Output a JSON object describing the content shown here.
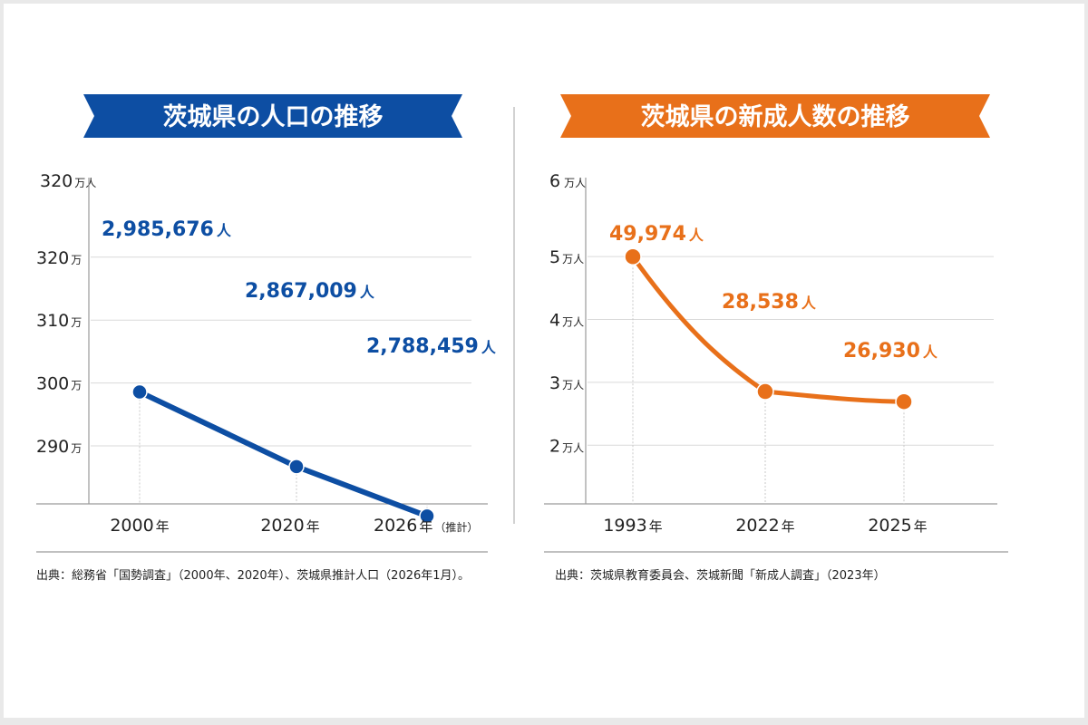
{
  "chart_data": [
    {
      "type": "line",
      "title": "茨城県の人口の推移",
      "color": "#0d4ea3",
      "y_top_label": "320",
      "y_top_unit": "万人",
      "y_unit": "万",
      "yticks": [
        290,
        300,
        310,
        320
      ],
      "ylim": [
        280,
        330
      ],
      "categories": [
        "2000",
        "2020",
        "2026"
      ],
      "x_unit": "年",
      "x_note": "（推計）",
      "values": [
        298.5676,
        286.7009,
        278.8459
      ],
      "value_labels": [
        "2,985,676",
        "2,867,009",
        "2,788,459"
      ],
      "value_unit": "人",
      "source": "出典：総務省「国勢調査」（2000年、2020年）、茨城県推計人口（2026年1月）。"
    },
    {
      "type": "line",
      "title": "茨城県の新成人数の推移",
      "color": "#e8701a",
      "y_top_label": "6",
      "y_top_unit": "万人",
      "y_unit": "万人",
      "yticks": [
        2,
        3,
        4,
        5
      ],
      "ylim": [
        1,
        6
      ],
      "categories": [
        "1993",
        "2022",
        "2025"
      ],
      "x_unit": "年",
      "x_note": "",
      "values": [
        4.9974,
        2.8538,
        2.693
      ],
      "value_labels": [
        "49,974",
        "28,538",
        "26,930"
      ],
      "value_unit": "人",
      "source": "出典：茨城県教育委員会、茨城新聞「新成人調査」（2023年）"
    }
  ]
}
